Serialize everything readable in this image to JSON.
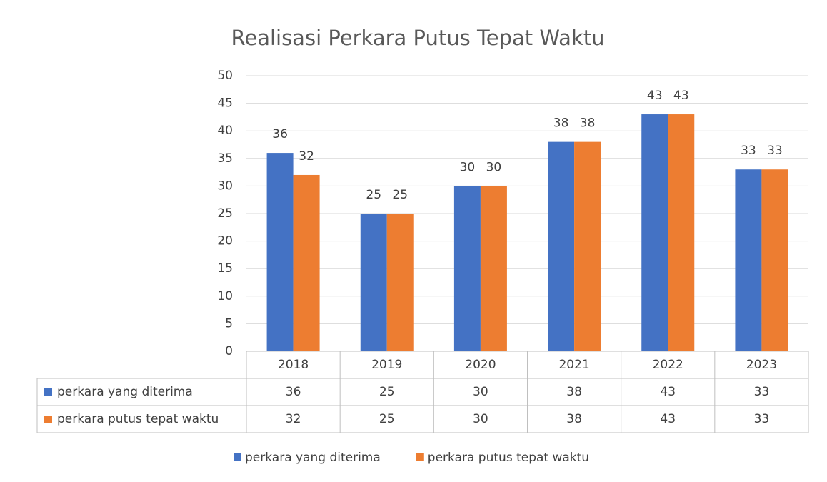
{
  "chart_data": {
    "type": "bar",
    "title": "Realisasi Perkara Putus Tepat Waktu",
    "categories": [
      "2018",
      "2019",
      "2020",
      "2021",
      "2022",
      "2023"
    ],
    "series": [
      {
        "name": "perkara yang diterima",
        "color": "#4472c4",
        "values": [
          36,
          25,
          30,
          38,
          43,
          33
        ]
      },
      {
        "name": "perkara putus tepat waktu",
        "color": "#ed7d31",
        "values": [
          32,
          25,
          30,
          38,
          43,
          33
        ]
      }
    ],
    "ylim": [
      0,
      50
    ],
    "yticks": [
      0,
      5,
      10,
      15,
      20,
      25,
      30,
      35,
      40,
      45,
      50
    ],
    "grid": true,
    "data_table": true
  }
}
